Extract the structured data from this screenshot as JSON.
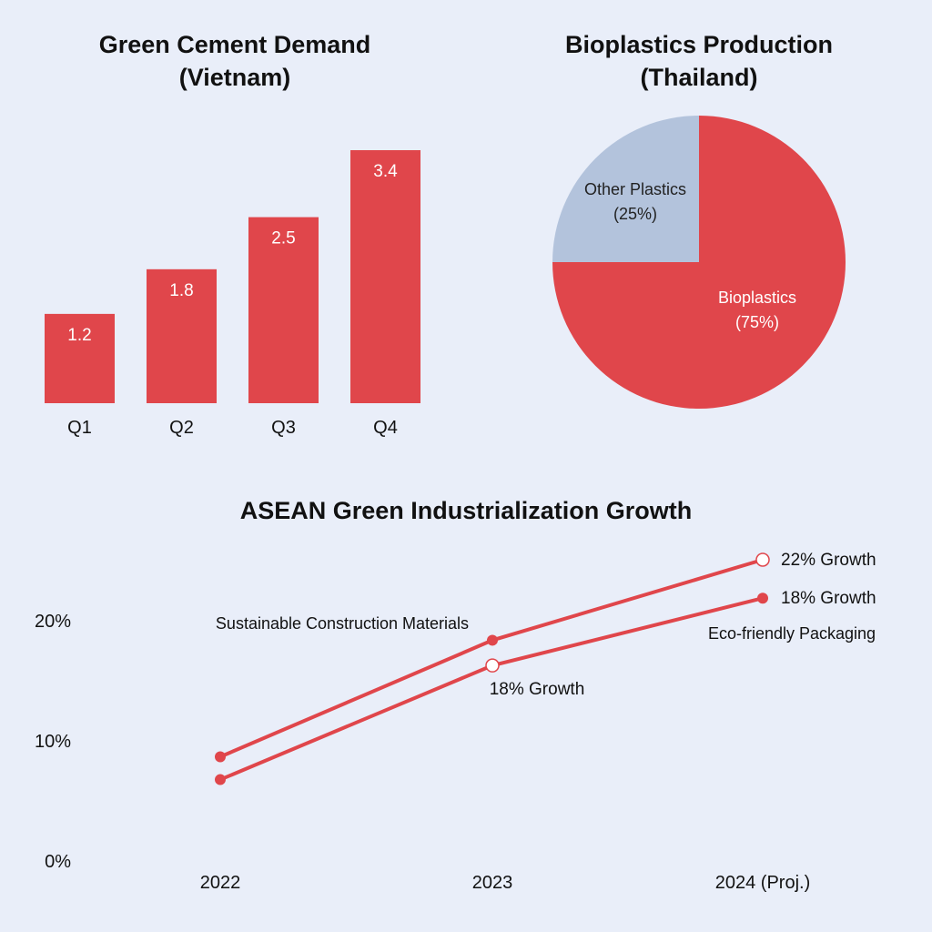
{
  "colors": {
    "accent": "#e0464b",
    "secondary": "#b3c3dc",
    "background": "#e9eef9"
  },
  "chart_data": [
    {
      "type": "bar",
      "title": [
        "Green Cement Demand",
        "(Vietnam)"
      ],
      "categories": [
        "Q1",
        "Q2",
        "Q3",
        "Q4"
      ],
      "values": [
        1.2,
        1.8,
        2.5,
        3.4
      ],
      "data_labels": [
        "1.2",
        "1.8",
        "2.5",
        "3.4"
      ],
      "ylim": [
        0,
        3.4
      ],
      "grid": false
    },
    {
      "type": "pie",
      "title": [
        "Bioplastics Production",
        "(Thailand)"
      ],
      "slices": [
        {
          "label": "Other Plastics",
          "pct_label": "(25%)",
          "value": 25,
          "color": "#b3c3dc"
        },
        {
          "label": "Bioplastics",
          "pct_label": "(75%)",
          "value": 75,
          "color": "#e0464b"
        }
      ]
    },
    {
      "type": "line",
      "title": "ASEAN Green Industrialization Growth",
      "categories": [
        "2022",
        "2023",
        "2024 (Proj.)"
      ],
      "yticks": [
        "0%",
        "10%",
        "20%"
      ],
      "ylim": [
        0,
        25
      ],
      "grid": false,
      "series": [
        {
          "name": "Sustainable Construction Materials",
          "values": [
            8.6,
            18.3,
            25.0
          ],
          "markers": [
            "filled",
            "filled",
            "open"
          ]
        },
        {
          "name": "Eco-friendly Packaging",
          "values": [
            6.7,
            16.2,
            21.8
          ],
          "markers": [
            "filled",
            "open",
            "filled"
          ]
        }
      ],
      "annotations": [
        "22% Growth",
        "18% Growth",
        "18% Growth"
      ]
    }
  ]
}
